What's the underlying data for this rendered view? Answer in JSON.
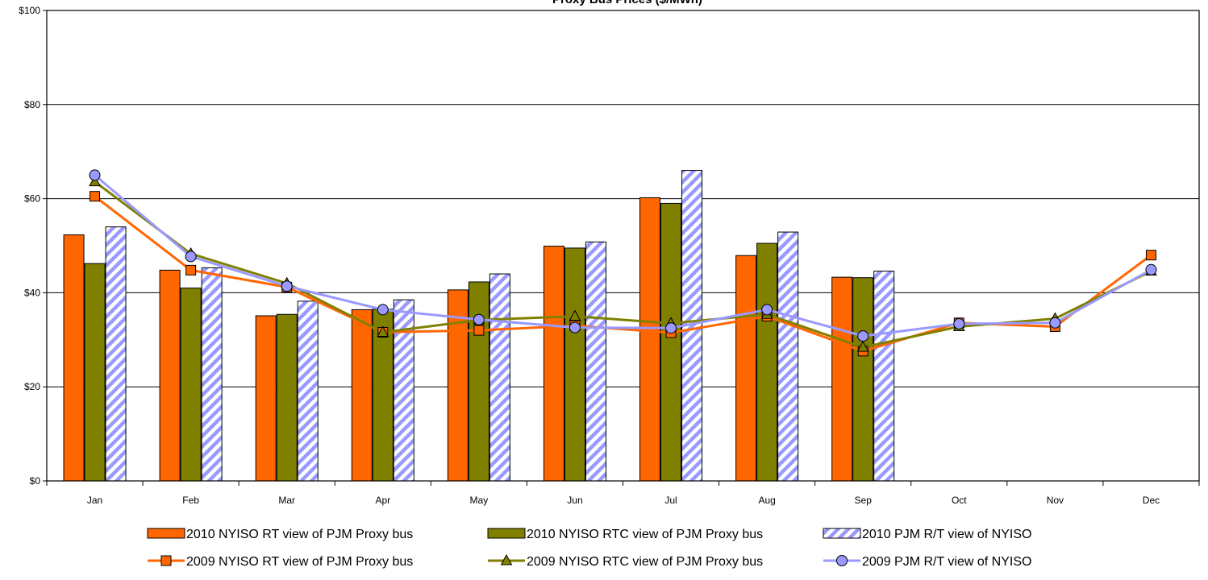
{
  "chart_data": {
    "type": "bar",
    "title": "Proxy Bus Prices ($/MWh)",
    "xlabel": "",
    "ylabel": "",
    "categories": [
      "Jan",
      "Feb",
      "Mar",
      "Apr",
      "May",
      "Jun",
      "Jul",
      "Aug",
      "Sep",
      "Oct",
      "Nov",
      "Dec"
    ],
    "ylim": [
      0,
      100
    ],
    "y_ticks": [
      "$0",
      "$20",
      "$40",
      "$60",
      "$80",
      "$100"
    ],
    "y_tick_values": [
      0,
      20,
      40,
      60,
      80,
      100
    ],
    "grid": true,
    "legend_position": "bottom",
    "bar_series": [
      {
        "name": "2010 NYISO RT view of PJM Proxy bus",
        "color": "#FF6600",
        "pattern": "solid",
        "values": [
          52.3,
          44.8,
          35.1,
          36.4,
          40.6,
          49.9,
          60.2,
          47.9,
          43.3,
          null,
          null,
          null
        ]
      },
      {
        "name": "2010 NYISO RTC view of PJM Proxy bus",
        "color": "#808000",
        "pattern": "solid",
        "values": [
          46.2,
          41.0,
          35.4,
          36.5,
          42.3,
          49.5,
          59.0,
          50.5,
          43.2,
          null,
          null,
          null
        ]
      },
      {
        "name": "2010 PJM R/T view of NYISO",
        "color": "#9999FF",
        "pattern": "diagonal-stripes",
        "values": [
          54.0,
          45.3,
          38.2,
          38.5,
          44.0,
          50.8,
          66.0,
          52.9,
          44.6,
          null,
          null,
          null
        ]
      }
    ],
    "line_series": [
      {
        "name": "2009 NYISO RT view of PJM Proxy bus",
        "color": "#FF6600",
        "marker": "square",
        "values": [
          60.5,
          44.8,
          41.2,
          31.6,
          32.0,
          33.0,
          31.5,
          35.0,
          27.6,
          33.6,
          32.8,
          48.0
        ]
      },
      {
        "name": "2009 NYISO RTC view of PJM Proxy bus",
        "color": "#808000",
        "marker": "triangle",
        "values": [
          63.6,
          48.3,
          42.0,
          31.6,
          34.2,
          35.0,
          33.5,
          35.4,
          28.4,
          32.8,
          34.5,
          44.6
        ]
      },
      {
        "name": "2009 PJM R/T view of NYISO",
        "color": "#9999FF",
        "marker": "circle",
        "values": [
          65.0,
          47.7,
          41.4,
          36.4,
          34.3,
          32.6,
          32.5,
          36.4,
          30.8,
          33.4,
          33.6,
          44.9
        ]
      }
    ]
  }
}
